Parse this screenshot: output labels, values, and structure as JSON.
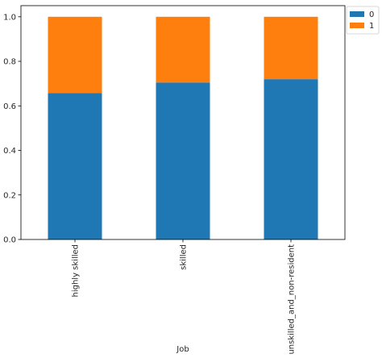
{
  "chart_data": {
    "type": "bar",
    "stacked": true,
    "categories": [
      "highly skilled",
      "skilled",
      "unskilled_and_non-resident"
    ],
    "series": [
      {
        "name": "0",
        "values": [
          0.657,
          0.705,
          0.72
        ],
        "color": "#1f77b4"
      },
      {
        "name": "1",
        "values": [
          0.343,
          0.295,
          0.28
        ],
        "color": "#ff7f0e"
      }
    ],
    "xlabel": "Job",
    "ylabel": "",
    "ylim": [
      0,
      1.05
    ],
    "yticks": [
      "0.0",
      "0.2",
      "0.4",
      "0.6",
      "0.8",
      "1.0"
    ],
    "grid": false,
    "legend_position": "outside top-right"
  }
}
